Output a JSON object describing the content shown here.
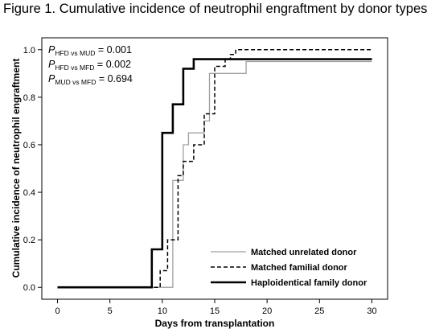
{
  "figure": {
    "title": "Figure 1. Cumulative incidence of neutrophil engraftment by donor types"
  },
  "annotations": {
    "pvalues": [
      {
        "p": "P",
        "sub": "HFD vs MUD",
        "value": " = 0.001"
      },
      {
        "p": "P",
        "sub": "HFD vs MFD",
        "value": " = 0.002"
      },
      {
        "p": "P",
        "sub": "MUD vs MFD",
        "value": " = 0.694"
      }
    ]
  },
  "chart_data": {
    "type": "line",
    "subtype": "step",
    "title": "",
    "xlabel": "Days from transplantation",
    "ylabel": "Cumulative incidence of neutrophil engraftment",
    "xlim": [
      -1.5,
      31.5
    ],
    "ylim": [
      -0.05,
      1.05
    ],
    "xticks": [
      0,
      5,
      10,
      15,
      20,
      25,
      30
    ],
    "yticks": [
      "0.0",
      "0.2",
      "0.4",
      "0.6",
      "0.8",
      "1.0"
    ],
    "ytick_values": [
      0.0,
      0.2,
      0.4,
      0.6,
      0.8,
      1.0
    ],
    "grid": false,
    "legend_position": "bottom-right",
    "series": [
      {
        "name": "Matched unrelated donor",
        "color": "#a0a0a0",
        "dash": "solid",
        "x": [
          0,
          11,
          11,
          12,
          12,
          12.5,
          12.5,
          14,
          14,
          14.5,
          14.5,
          15,
          15,
          18,
          18,
          30
        ],
        "y": [
          0,
          0,
          0.45,
          0.45,
          0.6,
          0.6,
          0.65,
          0.65,
          0.7,
          0.7,
          0.9,
          0.9,
          0.9,
          0.9,
          0.95,
          0.95
        ]
      },
      {
        "name": "Matched familial donor",
        "color": "#000000",
        "dash": "dashed",
        "x": [
          0,
          9.8,
          9.8,
          10.5,
          10.5,
          11.5,
          11.5,
          12,
          12,
          13,
          13,
          14,
          14,
          15,
          15,
          16,
          16,
          16.5,
          16.5,
          17,
          17,
          30
        ],
        "y": [
          0,
          0,
          0.07,
          0.07,
          0.2,
          0.2,
          0.47,
          0.47,
          0.53,
          0.53,
          0.6,
          0.6,
          0.73,
          0.73,
          0.93,
          0.93,
          0.96,
          0.96,
          0.98,
          0.98,
          1.0,
          1.0
        ]
      },
      {
        "name": "Haploidentical family donor",
        "color": "#000000",
        "dash": "solid",
        "x": [
          0,
          9,
          9,
          10,
          10,
          11,
          11,
          12,
          12,
          13,
          13,
          30
        ],
        "y": [
          0,
          0,
          0.16,
          0.16,
          0.65,
          0.65,
          0.77,
          0.77,
          0.92,
          0.92,
          0.96,
          0.96
        ]
      }
    ]
  }
}
